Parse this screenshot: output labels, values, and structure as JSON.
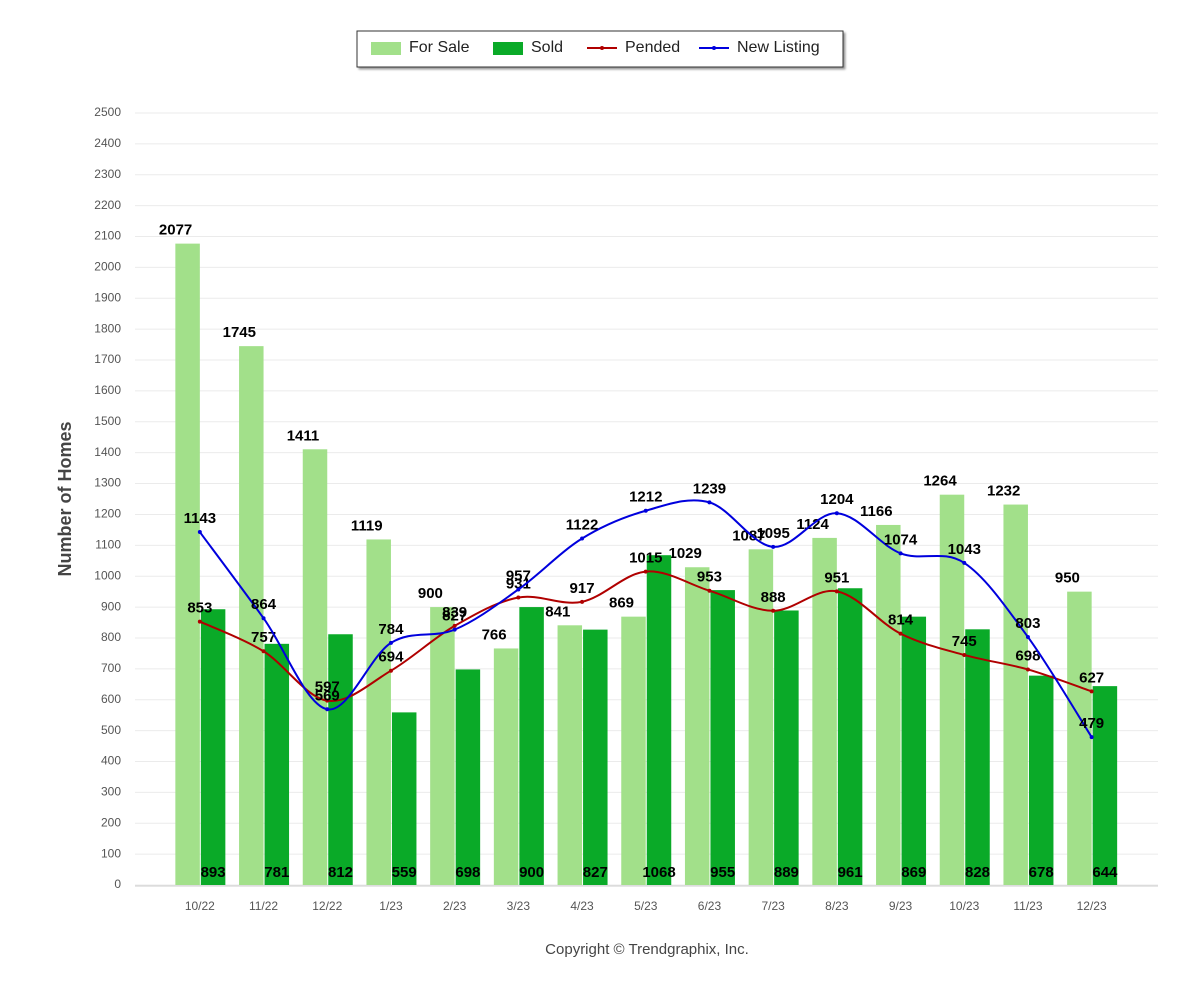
{
  "chart_data": {
    "type": "bar-line",
    "y_label": "Number of Homes",
    "footer": "Copyright © Trendgraphix, Inc.",
    "categories": [
      "10/22",
      "11/22",
      "12/22",
      "1/23",
      "2/23",
      "3/23",
      "4/23",
      "5/23",
      "6/23",
      "7/23",
      "8/23",
      "9/23",
      "10/23",
      "11/23",
      "12/23"
    ],
    "series": [
      {
        "name": "For Sale",
        "kind": "bar",
        "color": "#a2e08a",
        "values": [
          2077,
          1745,
          1411,
          1119,
          900,
          766,
          841,
          869,
          1029,
          1087,
          1124,
          1166,
          1264,
          1232,
          950
        ]
      },
      {
        "name": "Sold",
        "kind": "bar",
        "color": "#0aaa28",
        "values": [
          893,
          781,
          812,
          559,
          698,
          900,
          827,
          1068,
          955,
          889,
          961,
          869,
          828,
          678,
          644
        ]
      },
      {
        "name": "Pended",
        "kind": "line",
        "color": "#b00000",
        "values": [
          853,
          757,
          597,
          694,
          839,
          931,
          917,
          1015,
          953,
          888,
          951,
          814,
          745,
          698,
          627
        ]
      },
      {
        "name": "New Listing",
        "kind": "line",
        "color": "#0000dd",
        "values": [
          1143,
          864,
          569,
          784,
          827,
          957,
          1122,
          1212,
          1239,
          1095,
          1204,
          1074,
          1043,
          803,
          479
        ]
      }
    ],
    "ylim": [
      0,
      2500
    ],
    "yticks": [
      0,
      100,
      200,
      300,
      400,
      500,
      600,
      700,
      800,
      900,
      1000,
      1100,
      1200,
      1300,
      1400,
      1500,
      1600,
      1700,
      1800,
      1900,
      2000,
      2100,
      2200,
      2300,
      2400,
      2500
    ],
    "grid": true
  }
}
